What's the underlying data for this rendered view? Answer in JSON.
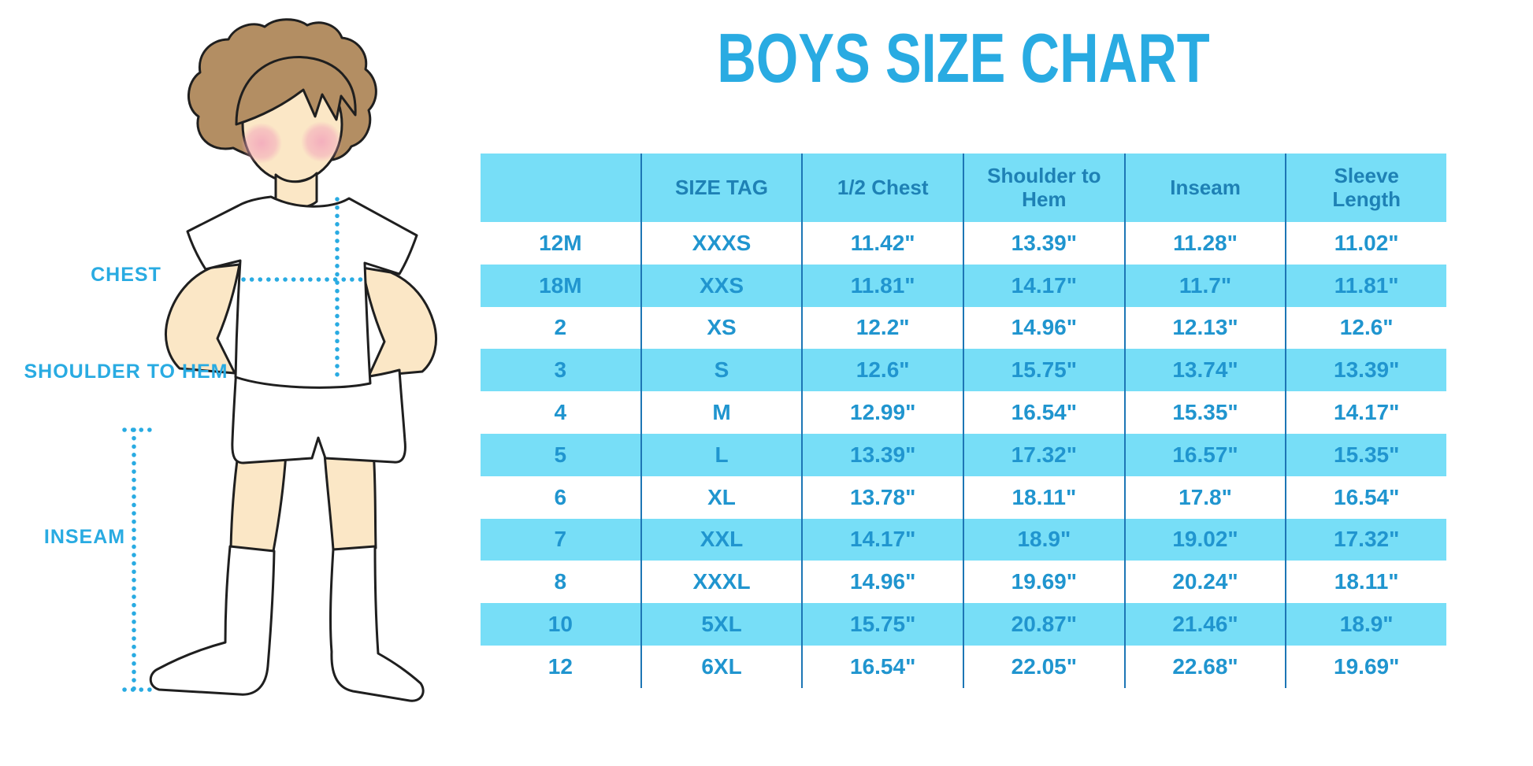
{
  "title": "BOYS SIZE CHART",
  "figure": {
    "labels": {
      "chest": "CHEST",
      "shoulder_to_hem": "SHOULDER TO HEM",
      "inseam": "INSEAM"
    }
  },
  "colors": {
    "accent_blue": "#29ABE2",
    "table_stripe": "#77DEF7",
    "table_border": "#1D76B5",
    "header_text": "#1E81B5",
    "cell_text": "#2095CF",
    "hair_brown": "#B38E63",
    "skin": "#FBE7C6",
    "cheek_pink": "#F3A9BC",
    "outline": "#1F1F1F"
  },
  "chart_data": {
    "type": "table",
    "title": "BOYS SIZE CHART",
    "columns": [
      "",
      "SIZE TAG",
      "1/2 Chest",
      "Shoulder to Hem",
      "Inseam",
      "Sleeve Length"
    ],
    "rows": [
      [
        "12M",
        "XXXS",
        "11.42\"",
        "13.39\"",
        "11.28\"",
        "11.02\""
      ],
      [
        "18M",
        "XXS",
        "11.81\"",
        "14.17\"",
        "11.7\"",
        "11.81\""
      ],
      [
        "2",
        "XS",
        "12.2\"",
        "14.96\"",
        "12.13\"",
        "12.6\""
      ],
      [
        "3",
        "S",
        "12.6\"",
        "15.75\"",
        "13.74\"",
        "13.39\""
      ],
      [
        "4",
        "M",
        "12.99\"",
        "16.54\"",
        "15.35\"",
        "14.17\""
      ],
      [
        "5",
        "L",
        "13.39\"",
        "17.32\"",
        "16.57\"",
        "15.35\""
      ],
      [
        "6",
        "XL",
        "13.78\"",
        "18.11\"",
        "17.8\"",
        "16.54\""
      ],
      [
        "7",
        "XXL",
        "14.17\"",
        "18.9\"",
        "19.02\"",
        "17.32\""
      ],
      [
        "8",
        "XXXL",
        "14.96\"",
        "19.69\"",
        "20.24\"",
        "18.11\""
      ],
      [
        "10",
        "5XL",
        "15.75\"",
        "20.87\"",
        "21.46\"",
        "18.9\""
      ],
      [
        "12",
        "6XL",
        "16.54\"",
        "22.05\"",
        "22.68\"",
        "19.69\""
      ]
    ]
  }
}
